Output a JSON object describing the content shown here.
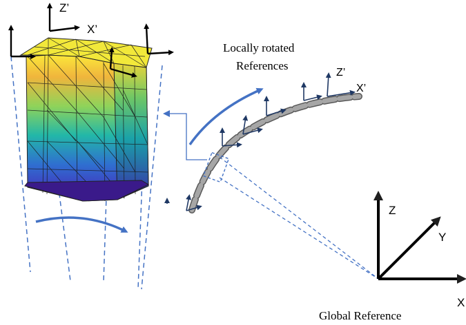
{
  "labels": {
    "local_refs_line1": "Locally rotated",
    "local_refs_line2": "References",
    "global_ref": "Global Reference"
  },
  "block_axes": {
    "z": "Z’",
    "x": "X’"
  },
  "local_axes": {
    "z": "Z’",
    "x": "X’"
  },
  "global_axes": {
    "z": "Z",
    "y": "Y",
    "x": "X"
  },
  "colors": {
    "accent_blue": "#4472c4",
    "segment_fill": "#a6a6a6",
    "segment_stroke": "#595959",
    "dark_navy": "#1f3864"
  }
}
